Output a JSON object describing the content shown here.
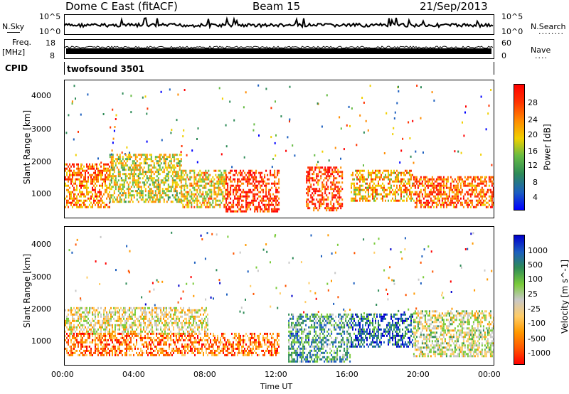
{
  "header": {
    "radar": "Dome C East (fitACF)",
    "beam": "Beam 15",
    "date": "21/Sep/2013"
  },
  "status_panels": {
    "nsky": {
      "left_label": "N.Sky",
      "left_ticks": [
        "10^5",
        "10^0"
      ],
      "right_label": "N.Search",
      "right_ticks": [
        "10^5",
        "10^0"
      ],
      "right_legend": "........"
    },
    "freq": {
      "left_label_line1": "Freq.",
      "left_label_line2": "[MHz]",
      "left_ticks": [
        "18",
        "8"
      ],
      "right_label": "Nave",
      "right_ticks": [
        "60",
        "0"
      ],
      "right_legend": "...."
    },
    "cpid": {
      "label": "CPID",
      "value": "twofsound 3501"
    }
  },
  "chart_data": [
    {
      "type": "heatmap",
      "ylabel": "Slant Range [km]",
      "ylim": [
        200,
        4500
      ],
      "yticks": [
        "4000",
        "3000",
        "2000",
        "1000"
      ],
      "xlim": [
        0,
        24
      ],
      "colorbar": {
        "label": "Power [dB]",
        "ticks": [
          "28",
          "24",
          "20",
          "16",
          "12",
          "8",
          "4"
        ],
        "colors": [
          "#0000ff",
          "#1c5fbf",
          "#2e8b57",
          "#66bb44",
          "#f0d000",
          "#ff8c00",
          "#ff3300",
          "#ff0000"
        ]
      },
      "regions": [
        {
          "x": [
            0.0,
            2.5
          ],
          "y": [
            500,
            1900
          ],
          "level": 0.75
        },
        {
          "x": [
            2.5,
            6.5
          ],
          "y": [
            700,
            2200
          ],
          "level": 0.55
        },
        {
          "x": [
            6.5,
            9.0
          ],
          "y": [
            500,
            1700
          ],
          "level": 0.6
        },
        {
          "x": [
            9.0,
            12.0
          ],
          "y": [
            400,
            1700
          ],
          "level": 0.9
        },
        {
          "x": [
            13.5,
            15.5
          ],
          "y": [
            400,
            1800
          ],
          "level": 0.85
        },
        {
          "x": [
            16.0,
            19.5
          ],
          "y": [
            700,
            1700
          ],
          "level": 0.65
        },
        {
          "x": [
            19.5,
            24.0
          ],
          "y": [
            500,
            1500
          ],
          "level": 0.8
        }
      ]
    },
    {
      "type": "heatmap",
      "ylabel": "Slant Range [km]",
      "ylim": [
        200,
        4500
      ],
      "yticks": [
        "4000",
        "3000",
        "2000",
        "1000"
      ],
      "xlim": [
        0,
        24
      ],
      "xticks": [
        "00:00",
        "04:00",
        "08:00",
        "12:00",
        "16:00",
        "20:00",
        "00:00"
      ],
      "xlabel": "Time UT",
      "colorbar": {
        "label": "Velocity [m s^-1]",
        "ticks": [
          "1000",
          "500",
          "100",
          "25",
          "-25",
          "-100",
          "-500",
          "-1000"
        ],
        "colors": [
          "#ff0000",
          "#ff5500",
          "#ff9900",
          "#ffcc66",
          "#c8c8c8",
          "#7acb3a",
          "#2e8b57",
          "#1c5fbf",
          "#0000cc"
        ]
      },
      "regions": [
        {
          "x": [
            0.0,
            8.0
          ],
          "y": [
            1200,
            2000
          ],
          "level": 0.45
        },
        {
          "x": [
            0.0,
            12.0
          ],
          "y": [
            500,
            1200
          ],
          "level": 0.2
        },
        {
          "x": [
            12.5,
            16.0
          ],
          "y": [
            300,
            1800
          ],
          "level": 0.72
        },
        {
          "x": [
            16.0,
            19.5
          ],
          "y": [
            800,
            1800
          ],
          "level": 0.85
        },
        {
          "x": [
            19.5,
            24.0
          ],
          "y": [
            500,
            1900
          ],
          "level": 0.5
        }
      ]
    }
  ]
}
